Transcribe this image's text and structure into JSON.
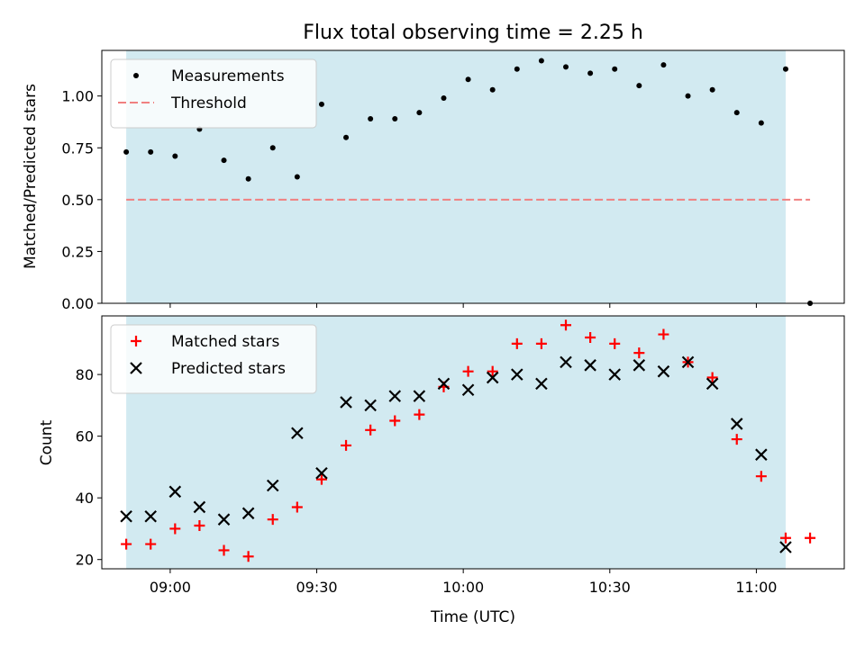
{
  "chart_data": [
    {
      "type": "scatter",
      "title": "Flux total observing time = 2.25 h",
      "xlabel": "",
      "ylabel": "Matched/Predicted stars",
      "ylim": [
        0.0,
        1.22
      ],
      "yticks": [
        "0.00",
        "0.25",
        "0.50",
        "0.75",
        "1.00"
      ],
      "xlim": [
        "08:46",
        "11:18"
      ],
      "x_ticklabels_shown": false,
      "shaded_interval": [
        "08:51",
        "11:06"
      ],
      "shade_color": "#add8e6",
      "legend_position": "upper-left",
      "series": [
        {
          "name": "Measurements",
          "marker": "dot",
          "color": "#000000",
          "points": [
            [
              "08:51",
              0.73
            ],
            [
              "08:56",
              0.73
            ],
            [
              "09:01",
              0.71
            ],
            [
              "09:06",
              0.84
            ],
            [
              "09:11",
              0.69
            ],
            [
              "09:16",
              0.6
            ],
            [
              "09:21",
              0.75
            ],
            [
              "09:26",
              0.61
            ],
            [
              "09:31",
              0.96
            ],
            [
              "09:36",
              0.8
            ],
            [
              "09:41",
              0.89
            ],
            [
              "09:46",
              0.89
            ],
            [
              "09:51",
              0.92
            ],
            [
              "09:56",
              0.99
            ],
            [
              "10:01",
              1.08
            ],
            [
              "10:06",
              1.03
            ],
            [
              "10:11",
              1.13
            ],
            [
              "10:16",
              1.17
            ],
            [
              "10:21",
              1.14
            ],
            [
              "10:26",
              1.11
            ],
            [
              "10:31",
              1.13
            ],
            [
              "10:36",
              1.05
            ],
            [
              "10:41",
              1.15
            ],
            [
              "10:46",
              1.0
            ],
            [
              "10:51",
              1.03
            ],
            [
              "10:56",
              0.92
            ],
            [
              "11:01",
              0.87
            ],
            [
              "11:06",
              1.13
            ],
            [
              "11:11",
              0.0
            ]
          ]
        },
        {
          "name": "Threshold",
          "marker": "dashed-line",
          "color": "#f08080",
          "points": [
            [
              "08:51",
              0.5
            ],
            [
              "11:11",
              0.5
            ]
          ]
        }
      ]
    },
    {
      "type": "scatter",
      "title": "",
      "xlabel": "Time (UTC)",
      "ylabel": "Count",
      "ylim": [
        17,
        99
      ],
      "yticks": [
        "20",
        "40",
        "60",
        "80"
      ],
      "xlim": [
        "08:46",
        "11:18"
      ],
      "xticks": [
        "09:00",
        "09:30",
        "10:00",
        "10:30",
        "11:00"
      ],
      "shaded_interval": [
        "08:51",
        "11:06"
      ],
      "shade_color": "#add8e6",
      "legend_position": "upper-left",
      "series": [
        {
          "name": "Matched stars",
          "marker": "plus",
          "color": "#ff0000",
          "points": [
            [
              "08:51",
              25
            ],
            [
              "08:56",
              25
            ],
            [
              "09:01",
              30
            ],
            [
              "09:06",
              31
            ],
            [
              "09:11",
              23
            ],
            [
              "09:16",
              21
            ],
            [
              "09:21",
              33
            ],
            [
              "09:26",
              37
            ],
            [
              "09:31",
              46
            ],
            [
              "09:36",
              57
            ],
            [
              "09:41",
              62
            ],
            [
              "09:46",
              65
            ],
            [
              "09:51",
              67
            ],
            [
              "09:56",
              76
            ],
            [
              "10:01",
              81
            ],
            [
              "10:06",
              81
            ],
            [
              "10:11",
              90
            ],
            [
              "10:16",
              90
            ],
            [
              "10:21",
              96
            ],
            [
              "10:26",
              92
            ],
            [
              "10:31",
              90
            ],
            [
              "10:36",
              87
            ],
            [
              "10:41",
              93
            ],
            [
              "10:46",
              84
            ],
            [
              "10:51",
              79
            ],
            [
              "10:56",
              59
            ],
            [
              "11:01",
              47
            ],
            [
              "11:06",
              27
            ],
            [
              "11:11",
              27
            ]
          ]
        },
        {
          "name": "Predicted stars",
          "marker": "x",
          "color": "#000000",
          "points": [
            [
              "08:51",
              34
            ],
            [
              "08:56",
              34
            ],
            [
              "09:01",
              42
            ],
            [
              "09:06",
              37
            ],
            [
              "09:11",
              33
            ],
            [
              "09:16",
              35
            ],
            [
              "09:21",
              44
            ],
            [
              "09:26",
              61
            ],
            [
              "09:31",
              48
            ],
            [
              "09:36",
              71
            ],
            [
              "09:41",
              70
            ],
            [
              "09:46",
              73
            ],
            [
              "09:51",
              73
            ],
            [
              "09:56",
              77
            ],
            [
              "10:01",
              75
            ],
            [
              "10:06",
              79
            ],
            [
              "10:11",
              80
            ],
            [
              "10:16",
              77
            ],
            [
              "10:21",
              84
            ],
            [
              "10:26",
              83
            ],
            [
              "10:31",
              80
            ],
            [
              "10:36",
              83
            ],
            [
              "10:41",
              81
            ],
            [
              "10:46",
              84
            ],
            [
              "10:51",
              77
            ],
            [
              "10:56",
              64
            ],
            [
              "11:01",
              54
            ],
            [
              "11:06",
              24
            ]
          ]
        }
      ]
    }
  ]
}
